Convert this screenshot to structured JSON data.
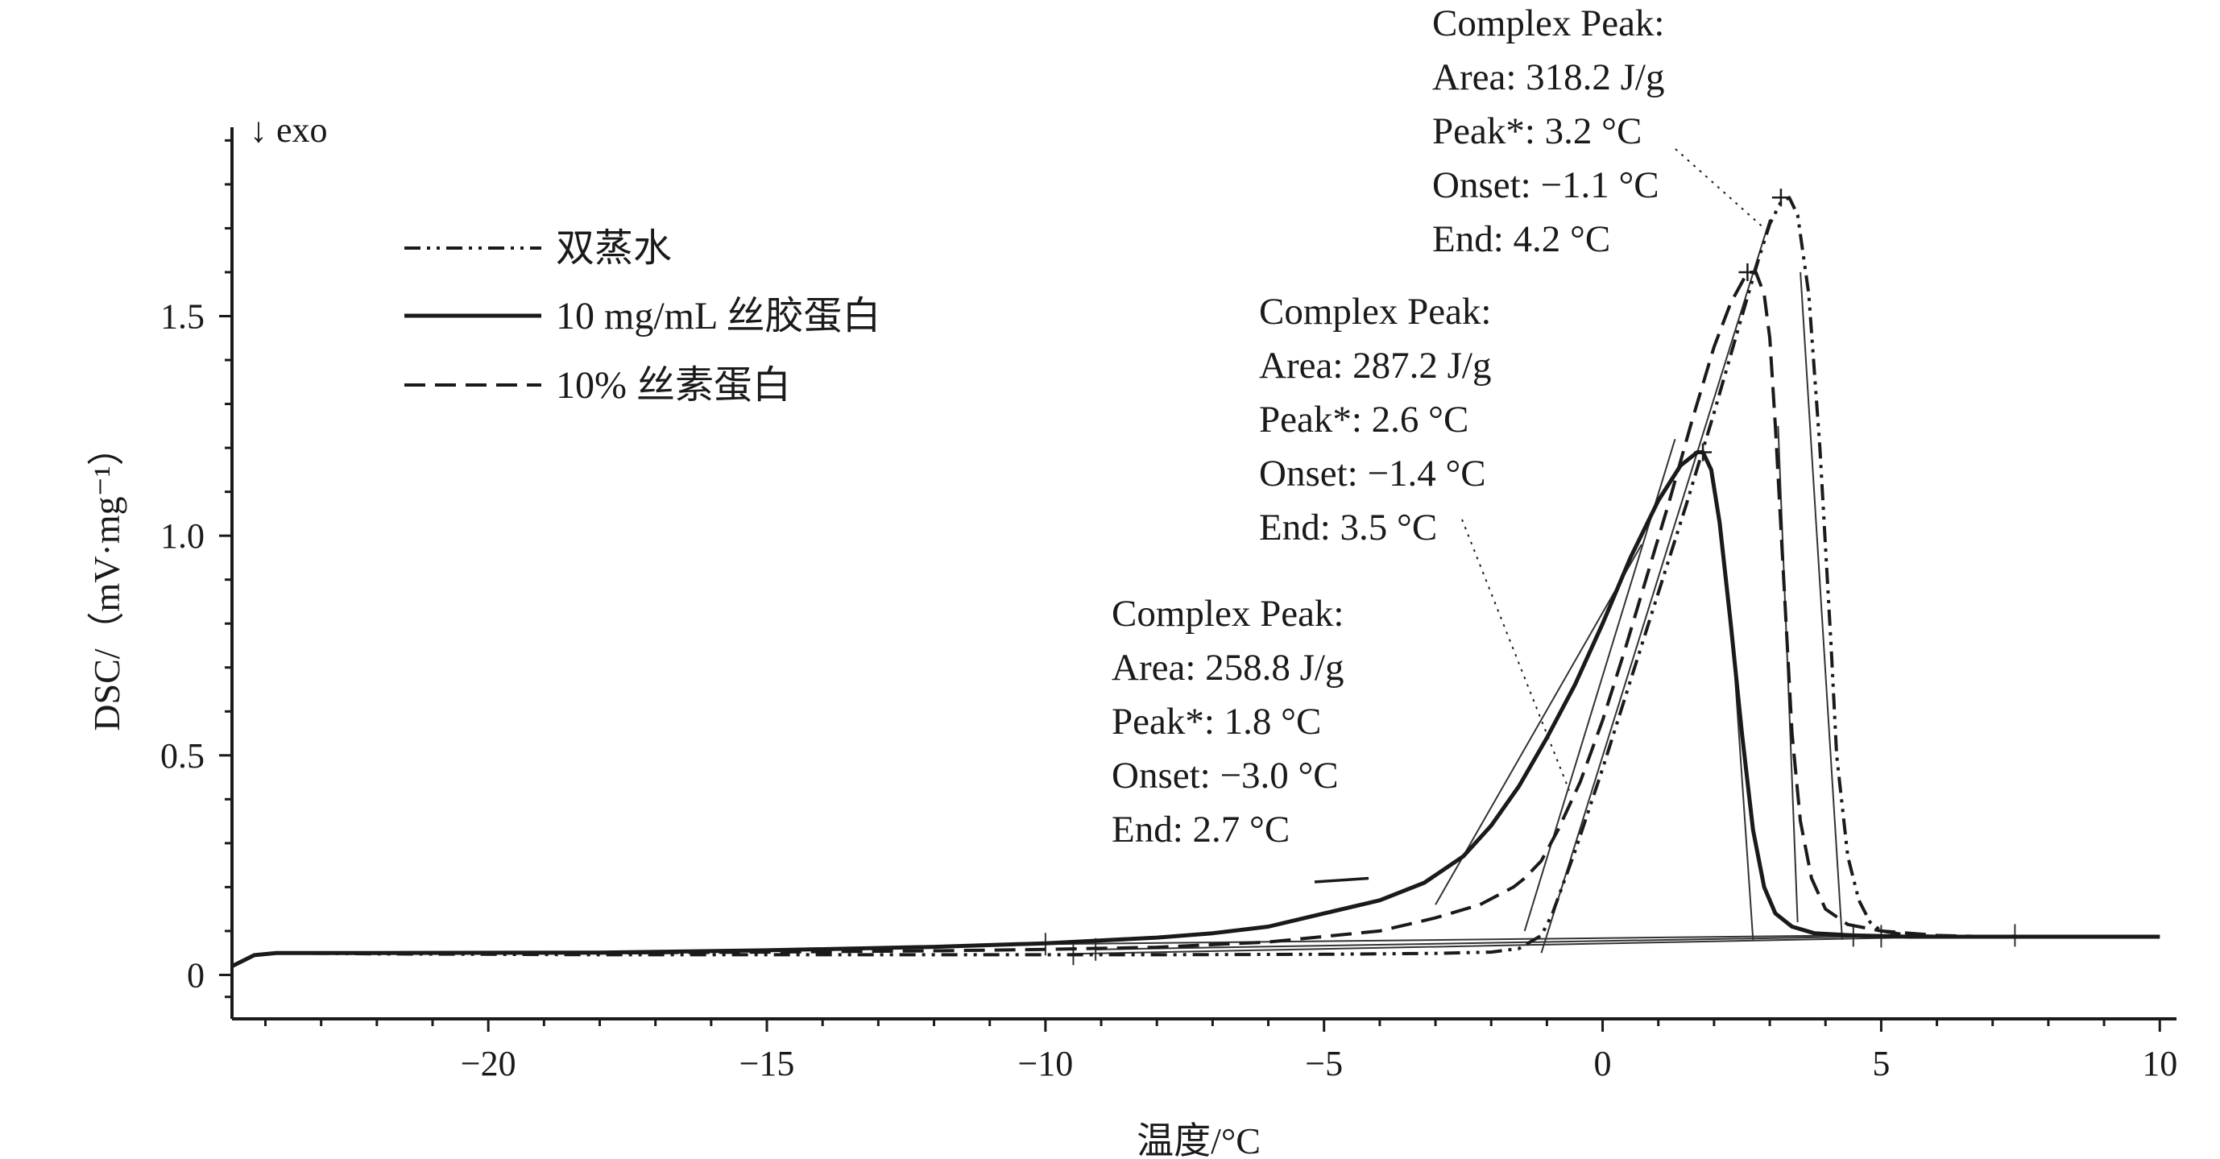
{
  "chart_data": {
    "type": "line",
    "xlabel": "温度/°C",
    "ylabel": "DSC/（mV·mg⁻¹）",
    "exo_label": "↓ exo",
    "xlim": [
      -24.6,
      10.3
    ],
    "ylim": [
      -0.1,
      1.93
    ],
    "xticks": [
      {
        "value": -20,
        "label": "−20"
      },
      {
        "value": -15,
        "label": "−15"
      },
      {
        "value": -10,
        "label": "−10"
      },
      {
        "value": -5,
        "label": "−5"
      },
      {
        "value": 0,
        "label": "0"
      },
      {
        "value": 5,
        "label": "5"
      },
      {
        "value": 10,
        "label": "10"
      }
    ],
    "yticks": [
      {
        "value": 0,
        "label": "0"
      },
      {
        "value": 0.5,
        "label": "0.5"
      },
      {
        "value": 1.0,
        "label": "1.0"
      },
      {
        "value": 1.5,
        "label": "1.5"
      }
    ],
    "grid": false,
    "legend_position": "top-left",
    "series": [
      {
        "name": "双蒸水",
        "style": "dash-dot-dot",
        "color": "#1a1a1a",
        "x": [
          -24.6,
          -24.2,
          -23.8,
          -22,
          -18,
          -15,
          -12,
          -10,
          -8,
          -5,
          -3,
          -2,
          -1.5,
          -1.1,
          -0.9,
          -0.5,
          0,
          0.5,
          1.0,
          1.5,
          2.0,
          2.5,
          2.8,
          3.0,
          3.2,
          3.35,
          3.5,
          3.7,
          3.9,
          4.1,
          4.2,
          4.4,
          4.6,
          4.8,
          5.0,
          5.5,
          6,
          7,
          8,
          9,
          10
        ],
        "y": [
          0.02,
          0.045,
          0.05,
          0.048,
          0.046,
          0.046,
          0.046,
          0.046,
          0.046,
          0.047,
          0.049,
          0.052,
          0.06,
          0.09,
          0.14,
          0.28,
          0.47,
          0.67,
          0.87,
          1.07,
          1.28,
          1.5,
          1.63,
          1.71,
          1.76,
          1.77,
          1.73,
          1.55,
          1.2,
          0.75,
          0.5,
          0.27,
          0.17,
          0.12,
          0.1,
          0.09,
          0.088,
          0.087,
          0.087,
          0.087,
          0.087
        ]
      },
      {
        "name": "10 mg/mL 丝胶蛋白",
        "style": "solid",
        "color": "#1a1a1a",
        "x": [
          -24.6,
          -24.2,
          -23.8,
          -22,
          -18,
          -15,
          -12,
          -10,
          -8,
          -7,
          -6,
          -5,
          -4,
          -3.2,
          -2.5,
          -2,
          -1.5,
          -1,
          -0.5,
          0,
          0.5,
          1.0,
          1.4,
          1.7,
          1.8,
          1.95,
          2.1,
          2.3,
          2.5,
          2.7,
          2.9,
          3.1,
          3.4,
          3.8,
          4.5,
          5.5,
          7,
          10
        ],
        "y": [
          0.02,
          0.045,
          0.05,
          0.05,
          0.051,
          0.056,
          0.064,
          0.072,
          0.085,
          0.095,
          0.11,
          0.14,
          0.17,
          0.21,
          0.27,
          0.34,
          0.43,
          0.54,
          0.66,
          0.8,
          0.95,
          1.08,
          1.16,
          1.19,
          1.19,
          1.15,
          1.03,
          0.8,
          0.55,
          0.33,
          0.2,
          0.14,
          0.11,
          0.095,
          0.09,
          0.087,
          0.087,
          0.087
        ]
      },
      {
        "name": "10% 丝素蛋白",
        "style": "dashed",
        "color": "#1a1a1a",
        "x": [
          -24.6,
          -24.2,
          -23.8,
          -22,
          -18,
          -15,
          -12,
          -10,
          -8,
          -6,
          -4,
          -3,
          -2.2,
          -1.6,
          -1.4,
          -1.1,
          -0.8,
          -0.4,
          0,
          0.4,
          0.8,
          1.2,
          1.6,
          2.0,
          2.3,
          2.6,
          2.75,
          2.9,
          3.0,
          3.1,
          3.25,
          3.4,
          3.55,
          3.75,
          4.0,
          4.4,
          5.0,
          6,
          7,
          10
        ],
        "y": [
          0.02,
          0.045,
          0.05,
          0.05,
          0.05,
          0.052,
          0.055,
          0.058,
          0.063,
          0.075,
          0.1,
          0.13,
          0.16,
          0.2,
          0.22,
          0.26,
          0.33,
          0.44,
          0.58,
          0.74,
          0.91,
          1.08,
          1.26,
          1.43,
          1.53,
          1.6,
          1.6,
          1.55,
          1.45,
          1.25,
          0.9,
          0.55,
          0.35,
          0.22,
          0.15,
          0.115,
          0.1,
          0.09,
          0.087,
          0.087
        ]
      }
    ],
    "annotations": [
      {
        "lines": [
          "Complex Peak:",
          "Area: 318.2 J/g",
          "Peak*: 3.2 °C",
          "Onset: −1.1 °C",
          "End: 4.2 °C"
        ],
        "peak": {
          "x": 3.2,
          "y": 1.77
        },
        "leader_style": "dotted",
        "leader_to": {
          "x": 2.9,
          "y": 1.7
        },
        "baseline": {
          "x1": -9.5,
          "y1": 0.048,
          "x2": 7.4,
          "y2": 0.09
        },
        "onset_tangent": {
          "x1": -1.1,
          "y1": 0.05,
          "x2": 3.0,
          "y2": 1.72
        },
        "end_tangent": {
          "x1": 3.55,
          "y1": 1.6,
          "x2": 4.3,
          "y2": 0.08
        }
      },
      {
        "lines": [
          "Complex Peak:",
          "Area: 287.2 J/g",
          "Peak*: 2.6 °C",
          "Onset: −1.4 °C",
          "End: 3.5 °C"
        ],
        "peak": {
          "x": 2.6,
          "y": 1.6
        },
        "leader_style": "dotted",
        "leader_to": {
          "x": -0.6,
          "y": 0.42
        },
        "baseline": {
          "x1": -9.1,
          "y1": 0.058,
          "x2": 5.0,
          "y2": 0.088
        },
        "onset_tangent": {
          "x1": -1.4,
          "y1": 0.1,
          "x2": 1.3,
          "y2": 1.22
        },
        "end_tangent": {
          "x1": 3.15,
          "y1": 1.25,
          "x2": 3.5,
          "y2": 0.12
        }
      },
      {
        "lines": [
          "Complex Peak:",
          "Area: 258.8 J/g",
          "Peak*: 1.8 °C",
          "Onset: −3.0 °C",
          "End: 2.7 °C"
        ],
        "peak": {
          "x": 1.8,
          "y": 1.19
        },
        "leader_style": "solid",
        "leader_to": {
          "x": -4.2,
          "y": 0.22
        },
        "baseline": {
          "x1": -10.0,
          "y1": 0.07,
          "x2": 4.5,
          "y2": 0.09
        },
        "onset_tangent": {
          "x1": -3.0,
          "y1": 0.16,
          "x2": 0.7,
          "y2": 0.98
        },
        "end_tangent": {
          "x1": 2.3,
          "y1": 0.82,
          "x2": 2.7,
          "y2": 0.08
        }
      }
    ]
  }
}
